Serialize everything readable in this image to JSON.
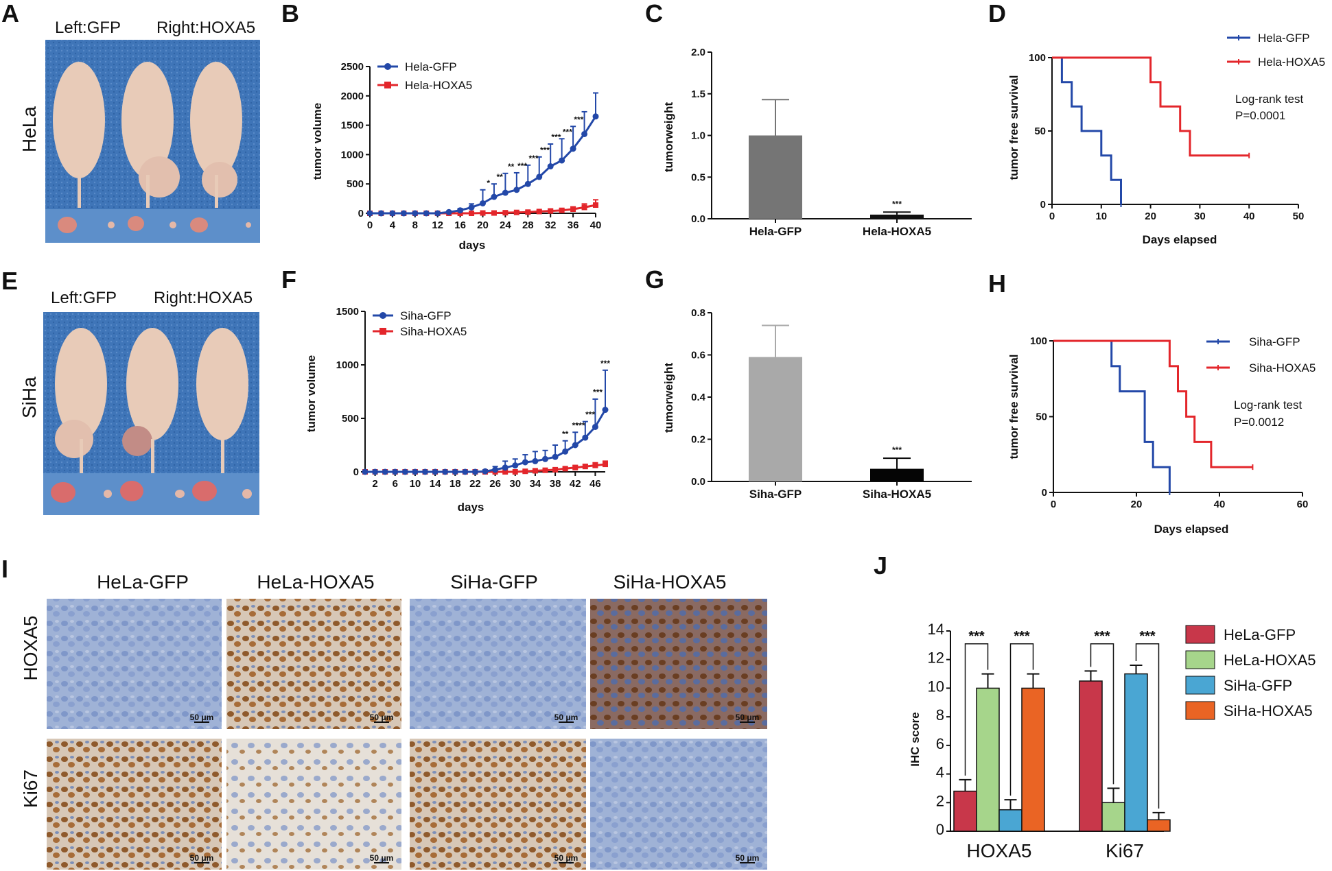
{
  "panel_letters": [
    "A",
    "B",
    "C",
    "D",
    "E",
    "F",
    "G",
    "H",
    "I",
    "J"
  ],
  "panelA": {
    "caption_left": "Left:GFP",
    "caption_right": "Right:HOXA5",
    "row_label": "HeLa"
  },
  "panelE": {
    "caption_left": "Left:GFP",
    "caption_right": "Right:HOXA5",
    "row_label": "SiHa"
  },
  "panelI": {
    "col_labels": [
      "HeLa-GFP",
      "HeLa-HOXA5",
      "SiHa-GFP",
      "SiHa-HOXA5"
    ],
    "row_labels": [
      "HOXA5",
      "Ki67"
    ],
    "scale_bar": "50 μm"
  },
  "colors": {
    "gfp_line": "#2348a8",
    "hoxa5_line": "#e3262b",
    "bar_hela_gfp": "#757575",
    "bar_hela_hoxa5": "#111111",
    "bar_siha_gfp": "#a9a9a9",
    "bar_siha_hoxa5": "#050505",
    "j_hela_gfp": "#c8374a",
    "j_hela_hoxa5": "#a6d58b",
    "j_siha_gfp": "#4aa6d3",
    "j_siha_hoxa5": "#ea6424"
  },
  "chart_data": [
    {
      "id": "B",
      "type": "line",
      "xlabel": "days",
      "ylabel": "tumor volume",
      "xlim": [
        0,
        40
      ],
      "ylim": [
        0,
        2500
      ],
      "xticks": [
        0,
        4,
        8,
        12,
        16,
        20,
        24,
        28,
        32,
        36,
        40
      ],
      "yticks": [
        0,
        500,
        1000,
        1500,
        2000,
        2500
      ],
      "series": [
        {
          "name": "Hela-GFP",
          "x": [
            0,
            2,
            4,
            6,
            8,
            10,
            12,
            14,
            16,
            18,
            20,
            22,
            24,
            26,
            28,
            30,
            32,
            34,
            36,
            38,
            40
          ],
          "values": [
            0,
            0,
            0,
            0,
            0,
            0,
            0,
            20,
            50,
            100,
            170,
            280,
            350,
            400,
            500,
            620,
            800,
            900,
            1100,
            1350,
            1650
          ],
          "err": [
            0,
            0,
            0,
            0,
            0,
            0,
            0,
            10,
            30,
            60,
            230,
            220,
            330,
            290,
            320,
            340,
            380,
            370,
            380,
            380,
            400
          ]
        },
        {
          "name": "Hela-HOXA5",
          "x": [
            0,
            2,
            4,
            6,
            8,
            10,
            12,
            14,
            16,
            18,
            20,
            22,
            24,
            26,
            28,
            30,
            32,
            34,
            36,
            38,
            40
          ],
          "values": [
            0,
            0,
            0,
            0,
            0,
            0,
            0,
            0,
            0,
            0,
            5,
            5,
            10,
            15,
            20,
            30,
            40,
            50,
            70,
            100,
            140
          ],
          "err": [
            0,
            0,
            0,
            0,
            0,
            0,
            0,
            0,
            0,
            0,
            5,
            5,
            10,
            10,
            15,
            20,
            25,
            30,
            40,
            60,
            90
          ]
        }
      ],
      "significance": [
        {
          "x": 21,
          "label": "*"
        },
        {
          "x": 23,
          "label": "**"
        },
        {
          "x": 25,
          "label": "**"
        },
        {
          "x": 27,
          "label": "***"
        },
        {
          "x": 29,
          "label": "***"
        },
        {
          "x": 31,
          "label": "***"
        },
        {
          "x": 33,
          "label": "***"
        },
        {
          "x": 35,
          "label": "***"
        },
        {
          "x": 37,
          "label": "***"
        }
      ]
    },
    {
      "id": "C",
      "type": "bar",
      "categories": [
        "Hela-GFP",
        "Hela-HOXA5"
      ],
      "values": [
        1.0,
        0.05
      ],
      "err": [
        0.43,
        0.03
      ],
      "ylabel": "tumorweight",
      "ylim": [
        0,
        2.0
      ],
      "yticks": [
        "0.0",
        "0.5",
        "1.0",
        "1.5",
        "2.0"
      ],
      "significance": "***"
    },
    {
      "id": "D",
      "type": "line",
      "title_note": "Log-rank  test",
      "p_value": "P=0.0001",
      "xlabel": "Days elapsed",
      "ylabel": "tumor free survival",
      "xlim": [
        0,
        50
      ],
      "ylim": [
        0,
        100
      ],
      "xticks": [
        0,
        10,
        20,
        30,
        40,
        50
      ],
      "yticks": [
        0,
        50,
        100
      ],
      "series": [
        {
          "name": "Hela-GFP",
          "x": [
            0,
            2,
            2,
            4,
            4,
            6,
            6,
            10,
            10,
            12,
            12,
            14,
            14
          ],
          "values": [
            100,
            100,
            83.3,
            83.3,
            66.7,
            66.7,
            50,
            50,
            33.3,
            33.3,
            16.7,
            16.7,
            0
          ]
        },
        {
          "name": "Hela-HOXA5",
          "x": [
            0,
            20,
            20,
            22,
            22,
            26,
            26,
            28,
            28,
            40
          ],
          "values": [
            100,
            100,
            83.3,
            83.3,
            66.7,
            66.7,
            50,
            50,
            33.3,
            33.3
          ]
        }
      ]
    },
    {
      "id": "F",
      "type": "line",
      "xlabel": "days",
      "ylabel": "tumor volume",
      "xlim": [
        0,
        48
      ],
      "ylim": [
        0,
        1500
      ],
      "xticks": [
        2,
        6,
        10,
        14,
        18,
        22,
        26,
        30,
        34,
        38,
        42,
        46
      ],
      "yticks": [
        0,
        500,
        1000,
        1500
      ],
      "series": [
        {
          "name": "Siha-GFP",
          "x": [
            0,
            2,
            4,
            6,
            8,
            10,
            12,
            14,
            16,
            18,
            20,
            22,
            24,
            26,
            28,
            30,
            32,
            34,
            36,
            38,
            40,
            42,
            44,
            46,
            48
          ],
          "values": [
            0,
            0,
            0,
            0,
            0,
            0,
            0,
            0,
            0,
            0,
            0,
            0,
            5,
            20,
            40,
            60,
            90,
            100,
            120,
            140,
            190,
            250,
            320,
            420,
            580
          ],
          "err": [
            0,
            0,
            0,
            0,
            0,
            0,
            0,
            0,
            0,
            0,
            0,
            0,
            10,
            30,
            60,
            60,
            70,
            90,
            80,
            110,
            100,
            120,
            150,
            260,
            370
          ]
        },
        {
          "name": "Siha-HOXA5",
          "x": [
            0,
            2,
            4,
            6,
            8,
            10,
            12,
            14,
            16,
            18,
            20,
            22,
            24,
            26,
            28,
            30,
            32,
            34,
            36,
            38,
            40,
            42,
            44,
            46,
            48
          ],
          "values": [
            0,
            0,
            0,
            0,
            0,
            0,
            0,
            0,
            0,
            0,
            0,
            0,
            0,
            0,
            0,
            0,
            5,
            10,
            15,
            20,
            30,
            40,
            50,
            60,
            70
          ],
          "err": [
            0,
            0,
            0,
            0,
            0,
            0,
            0,
            0,
            0,
            0,
            0,
            0,
            0,
            0,
            0,
            0,
            5,
            5,
            10,
            10,
            15,
            20,
            20,
            25,
            30
          ]
        }
      ],
      "significance": [
        {
          "x": 40,
          "label": "**"
        },
        {
          "x": 42,
          "label": "**"
        },
        {
          "x": 43,
          "label": "***"
        },
        {
          "x": 45,
          "label": "***"
        },
        {
          "x": 46.5,
          "label": "***"
        },
        {
          "x": 48,
          "label": "***"
        }
      ]
    },
    {
      "id": "G",
      "type": "bar",
      "categories": [
        "Siha-GFP",
        "Siha-HOXA5"
      ],
      "values": [
        0.59,
        0.06
      ],
      "err": [
        0.15,
        0.05
      ],
      "ylabel": "tumorweight",
      "ylim": [
        0,
        0.8
      ],
      "yticks": [
        "0.0",
        "0.2",
        "0.4",
        "0.6",
        "0.8"
      ],
      "significance": "***"
    },
    {
      "id": "H",
      "type": "line",
      "title_note": "Log-rank  test",
      "p_value": "P=0.0012",
      "xlabel": "Days elapsed",
      "ylabel": "tumor free survival",
      "xlim": [
        0,
        60
      ],
      "ylim": [
        0,
        100
      ],
      "xticks": [
        0,
        20,
        40,
        60
      ],
      "yticks": [
        0,
        50,
        100
      ],
      "series": [
        {
          "name": "Siha-GFP",
          "x": [
            0,
            14,
            14,
            16,
            16,
            22,
            22,
            24,
            24,
            26,
            26,
            28,
            28
          ],
          "values": [
            100,
            100,
            83.3,
            83.3,
            66.7,
            66.7,
            33.3,
            33.3,
            16.7,
            16.7,
            16.7,
            16.7,
            0
          ]
        },
        {
          "name": "Siha-HOXA5",
          "x": [
            0,
            28,
            28,
            30,
            30,
            32,
            32,
            34,
            34,
            38,
            38,
            48
          ],
          "values": [
            100,
            100,
            83.3,
            83.3,
            66.7,
            66.7,
            50,
            50,
            33.3,
            33.3,
            16.7,
            16.7
          ]
        }
      ]
    },
    {
      "id": "J",
      "type": "bar",
      "ylabel": "IHC score",
      "ylim": [
        0,
        14
      ],
      "yticks": [
        0,
        2,
        4,
        6,
        8,
        10,
        12,
        14
      ],
      "categories": [
        "HOXA5",
        "Ki67"
      ],
      "series": [
        {
          "name": "HeLa-GFP",
          "values": [
            2.8,
            10.5
          ],
          "err": [
            0.8,
            0.7
          ]
        },
        {
          "name": "HeLa-HOXA5",
          "values": [
            10.0,
            2.0
          ],
          "err": [
            1.0,
            1.0
          ]
        },
        {
          "name": "SiHa-GFP",
          "values": [
            1.5,
            11.0
          ],
          "err": [
            0.7,
            0.6
          ]
        },
        {
          "name": "SiHa-HOXA5",
          "values": [
            10.0,
            0.8
          ],
          "err": [
            1.0,
            0.5
          ]
        }
      ],
      "significance": "***"
    }
  ]
}
